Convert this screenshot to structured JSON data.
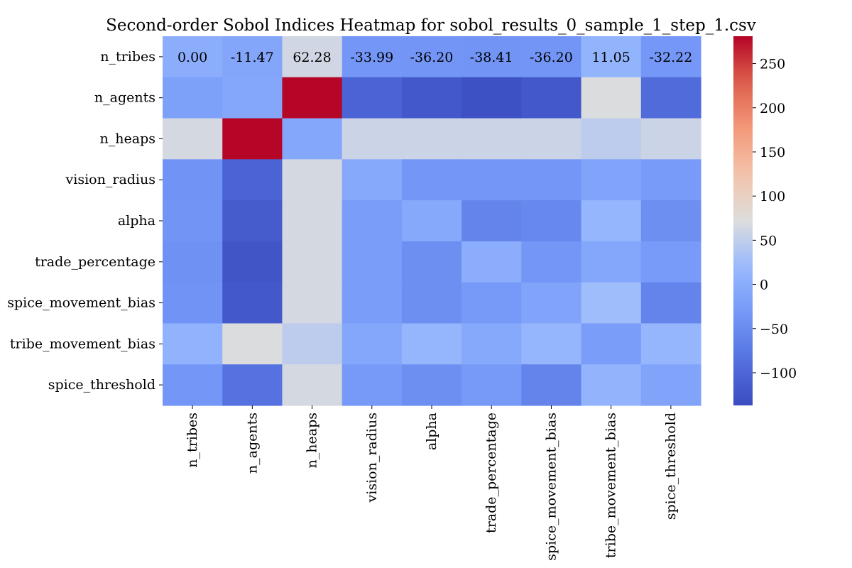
{
  "chart_data": {
    "type": "heatmap",
    "title": "Second-order Sobol Indices Heatmap for sobol_results_0_sample_1_step_1.csv",
    "xlabel": "",
    "ylabel": "",
    "row_labels": [
      "n_tribes",
      "n_agents",
      "n_heaps",
      "vision_radius",
      "alpha",
      "trade_percentage",
      "spice_movement_bias",
      "tribe_movement_bias",
      "spice_threshold"
    ],
    "col_labels": [
      "n_tribes",
      "n_agents",
      "n_heaps",
      "vision_radius",
      "alpha",
      "trade_percentage",
      "spice_movement_bias",
      "tribe_movement_bias",
      "spice_threshold"
    ],
    "values": [
      [
        0.0,
        -11.47,
        62.28,
        -33.99,
        -36.2,
        -38.41,
        -36.2,
        11.05,
        -32.22
      ],
      [
        -20,
        -8,
        280,
        -105,
        -120,
        -130,
        -120,
        70,
        -95
      ],
      [
        65,
        280,
        -10,
        58,
        58,
        58,
        58,
        48,
        58
      ],
      [
        -40,
        -105,
        65,
        -5,
        -35,
        -35,
        -35,
        -15,
        -28
      ],
      [
        -38,
        -115,
        65,
        -25,
        -5,
        -60,
        -55,
        15,
        -45
      ],
      [
        -42,
        -125,
        65,
        -25,
        -45,
        0,
        -35,
        -10,
        -28
      ],
      [
        -40,
        -120,
        65,
        -25,
        -45,
        -30,
        -15,
        25,
        -60
      ],
      [
        10,
        70,
        48,
        -8,
        15,
        -5,
        15,
        -25,
        15
      ],
      [
        -35,
        -85,
        65,
        -30,
        -45,
        -30,
        -60,
        12,
        -15
      ]
    ],
    "annotated_rows": [
      0
    ],
    "annotation_texts": [
      [
        "0.00",
        "-11.47",
        "62.28",
        "-33.99",
        "-36.20",
        "-38.41",
        "-36.20",
        "11.05",
        "-32.22"
      ]
    ],
    "colormap": "coolwarm",
    "vmin": -137,
    "vmax": 281,
    "colorbar_ticks": [
      {
        "value": 250,
        "label": "250"
      },
      {
        "value": 200,
        "label": "200"
      },
      {
        "value": 150,
        "label": "150"
      },
      {
        "value": 100,
        "label": "100"
      },
      {
        "value": 50,
        "label": "50"
      },
      {
        "value": 0,
        "label": "0"
      },
      {
        "value": -50,
        "label": "−50"
      },
      {
        "value": -100,
        "label": "−100"
      }
    ]
  }
}
